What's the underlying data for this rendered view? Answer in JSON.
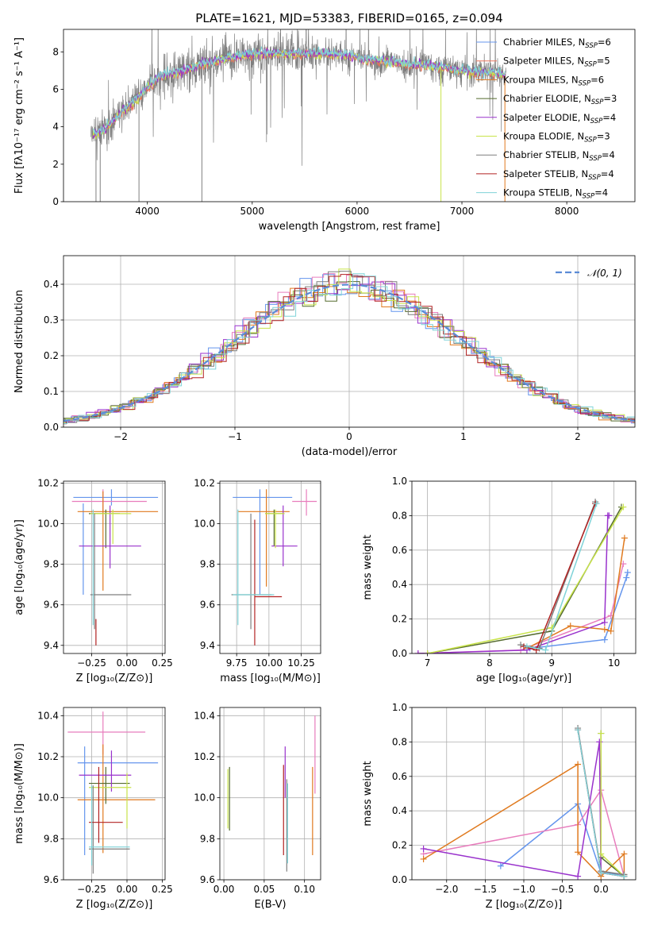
{
  "colors": {
    "chabrier_miles": "#6495ed",
    "salpeter_miles": "#e8735a",
    "kroupa_miles": "#e07a1f",
    "chabrier_elodie": "#556b2f",
    "salpeter_elodie": "#9932cc",
    "kroupa_elodie": "#c8e34a",
    "chabrier_stelib": "#7f7f7f",
    "salpeter_stelib": "#b22222",
    "kroupa_stelib": "#7fd3d8",
    "pink": "#e87dbd",
    "normal": "#5b8bd6"
  },
  "chart_data": [
    {
      "id": "spectrum",
      "type": "line",
      "title": "PLATE=1621, MJD=53383, FIBERID=0165, z=0.094",
      "xlabel": "wavelength [Angstrom, rest frame]",
      "ylabel": "Flux [fλ10⁻¹⁷ erg cm⁻² s⁻¹ A⁻¹]",
      "xlim": [
        3200,
        8650
      ],
      "ylim": [
        0,
        9.2
      ],
      "xticks": [
        4000,
        5000,
        6000,
        7000,
        8000
      ],
      "yticks": [
        0,
        2,
        4,
        6,
        8
      ],
      "xtick_labels": [
        "4000",
        "5000",
        "6000",
        "7000",
        "8000"
      ],
      "ytick_labels": [
        "0",
        "2",
        "4",
        "6",
        "8"
      ],
      "grid": false,
      "legend_position": "top-right",
      "legend": [
        {
          "name": "Chabrier MILES, N",
          "sub": "SSP",
          "tail": "=6",
          "color": "chabrier_miles"
        },
        {
          "name": "Salpeter MILES, N",
          "sub": "SSP",
          "tail": "=5",
          "color": "salpeter_miles"
        },
        {
          "name": "Kroupa MILES, N",
          "sub": "SSP",
          "tail": "=6",
          "color": "kroupa_miles"
        },
        {
          "name": "Chabrier ELODIE, N",
          "sub": "SSP",
          "tail": "=3",
          "color": "chabrier_elodie"
        },
        {
          "name": "Salpeter ELODIE, N",
          "sub": "SSP",
          "tail": "=4",
          "color": "salpeter_elodie"
        },
        {
          "name": "Kroupa ELODIE, N",
          "sub": "SSP",
          "tail": "=3",
          "color": "kroupa_elodie"
        },
        {
          "name": "Chabrier STELIB, N",
          "sub": "SSP",
          "tail": "=4",
          "color": "chabrier_stelib"
        },
        {
          "name": "Salpeter STELIB, N",
          "sub": "SSP",
          "tail": "=4",
          "color": "salpeter_stelib"
        },
        {
          "name": "Kroupa STELIB, N",
          "sub": "SSP",
          "tail": "=4",
          "color": "kroupa_stelib"
        }
      ],
      "continuum": {
        "x": [
          3500,
          3600,
          3700,
          3800,
          3900,
          4000,
          4100,
          4200,
          4300,
          4500,
          4700,
          4900,
          5100,
          5300,
          5500,
          5700,
          5900,
          6100,
          6300,
          6500,
          6700,
          6900,
          7100,
          7300,
          7420
        ],
        "y": [
          3.6,
          3.9,
          4.5,
          5.0,
          5.5,
          6.1,
          6.6,
          6.8,
          6.9,
          7.3,
          7.6,
          7.8,
          7.95,
          7.9,
          7.9,
          7.9,
          7.8,
          7.6,
          7.5,
          7.3,
          7.3,
          7.1,
          6.9,
          6.9,
          6.8
        ]
      },
      "wave_range": [
        3460,
        7420
      ]
    },
    {
      "id": "residuals",
      "type": "bar",
      "xlabel": "(data-model)/error",
      "ylabel": "Normed distribution",
      "xlim": [
        -2.5,
        2.5
      ],
      "ylim": [
        0,
        0.48
      ],
      "xticks": [
        -2,
        -1,
        0,
        1,
        2
      ],
      "yticks": [
        0,
        0.1,
        0.2,
        0.3,
        0.4
      ],
      "xtick_labels": [
        "−2",
        "−1",
        "0",
        "1",
        "2"
      ],
      "ytick_labels": [
        "0.0",
        "0.1",
        "0.2",
        "0.3",
        "0.4"
      ],
      "grid": true,
      "bin_width": 0.1,
      "legend_position": "top-right",
      "legend": [
        {
          "name": "𝒩(0, 1)",
          "color": "normal"
        }
      ]
    },
    {
      "id": "age-vs-z",
      "type": "scatter",
      "xlabel": "Z [log₁₀(Z/Z⊙)]",
      "ylabel": "age  [log₁₀(age/yr)]",
      "xlim": [
        -0.45,
        0.27
      ],
      "ylim": [
        9.36,
        10.21
      ],
      "xticks": [
        -0.25,
        0.0,
        0.25
      ],
      "xtick_labels": [
        "−0.25",
        "0.00",
        "0.25"
      ],
      "yticks": [
        9.4,
        9.6,
        9.8,
        10.0,
        10.2
      ],
      "ytick_labels": [
        "9.4",
        "9.6",
        "9.8",
        "10.0",
        "10.2"
      ],
      "grid": true,
      "points": [
        {
          "x": -0.11,
          "xlo": -0.38,
          "xhi": 0.22,
          "y": 10.13,
          "ylo": 10.09,
          "yhi": 10.17,
          "color": "chabrier_miles"
        },
        {
          "x": -0.31,
          "xlo": -0.31,
          "xhi": -0.31,
          "y": 9.9,
          "ylo": 9.65,
          "yhi": 10.1,
          "color": "chabrier_miles"
        },
        {
          "x": -0.17,
          "xlo": -0.39,
          "xhi": 0.14,
          "y": 10.11,
          "ylo": 10.06,
          "yhi": 10.17,
          "color": "pink"
        },
        {
          "x": -0.17,
          "xlo": -0.35,
          "xhi": 0.22,
          "y": 10.06,
          "ylo": 9.67,
          "yhi": 10.16,
          "color": "kroupa_miles"
        },
        {
          "x": -0.15,
          "xlo": -0.27,
          "xhi": -0.05,
          "y": 10.05,
          "ylo": 9.88,
          "yhi": 10.07,
          "color": "chabrier_elodie"
        },
        {
          "x": -0.12,
          "xlo": -0.34,
          "xhi": 0.1,
          "y": 9.89,
          "ylo": 9.78,
          "yhi": 10.09,
          "color": "salpeter_elodie"
        },
        {
          "x": -0.1,
          "xlo": -0.26,
          "xhi": 0.03,
          "y": 10.05,
          "ylo": 9.9,
          "yhi": 10.07,
          "color": "kroupa_elodie"
        },
        {
          "x": -0.23,
          "xlo": -0.26,
          "xhi": 0.03,
          "y": 9.65,
          "ylo": 9.48,
          "yhi": 10.05,
          "color": "chabrier_stelib"
        },
        {
          "x": -0.22,
          "xlo": -0.22,
          "xhi": -0.22,
          "y": 9.5,
          "ylo": 9.4,
          "yhi": 9.53,
          "color": "salpeter_stelib"
        },
        {
          "x": -0.24,
          "xlo": -0.24,
          "xhi": -0.24,
          "y": 9.65,
          "ylo": 9.5,
          "yhi": 10.07,
          "color": "kroupa_stelib"
        }
      ]
    },
    {
      "id": "age-vs-mass",
      "type": "scatter",
      "xlabel": "mass [log₁₀(M/M⊙)]",
      "ylabel": "",
      "xlim": [
        9.62,
        10.4
      ],
      "ylim": [
        9.36,
        10.21
      ],
      "xticks": [
        9.75,
        10.0,
        10.25
      ],
      "xtick_labels": [
        "9.75",
        "10.00",
        "10.25"
      ],
      "yticks": [
        9.4,
        9.6,
        9.8,
        10.0,
        10.2
      ],
      "ytick_labels": [
        "9.4",
        "9.6",
        "9.8",
        "10.0",
        "10.2"
      ],
      "grid": true,
      "points": [
        {
          "x": 9.93,
          "xlo": 9.72,
          "xhi": 10.18,
          "y": 10.13,
          "ylo": 9.65,
          "yhi": 10.17,
          "color": "chabrier_miles"
        },
        {
          "x": 10.29,
          "xlo": 10.18,
          "xhi": 10.37,
          "y": 10.11,
          "ylo": 10.04,
          "yhi": 10.17,
          "color": "pink"
        },
        {
          "x": 9.98,
          "xlo": 9.76,
          "xhi": 10.16,
          "y": 10.06,
          "ylo": 9.69,
          "yhi": 10.17,
          "color": "kroupa_miles"
        },
        {
          "x": 10.04,
          "xlo": 9.97,
          "xhi": 10.12,
          "y": 10.05,
          "ylo": 9.89,
          "yhi": 10.07,
          "color": "chabrier_elodie"
        },
        {
          "x": 10.11,
          "xlo": 10.02,
          "xhi": 10.22,
          "y": 9.89,
          "ylo": 9.79,
          "yhi": 10.09,
          "color": "salpeter_elodie"
        },
        {
          "x": 10.05,
          "xlo": 9.97,
          "xhi": 10.12,
          "y": 10.05,
          "ylo": 9.88,
          "yhi": 10.07,
          "color": "kroupa_elodie"
        },
        {
          "x": 9.86,
          "xlo": 9.71,
          "xhi": 10.02,
          "y": 9.65,
          "ylo": 9.48,
          "yhi": 10.05,
          "color": "chabrier_stelib"
        },
        {
          "x": 9.89,
          "xlo": 9.89,
          "xhi": 10.1,
          "y": 9.64,
          "ylo": 9.4,
          "yhi": 10.02,
          "color": "salpeter_stelib"
        },
        {
          "x": 9.76,
          "xlo": 9.72,
          "xhi": 10.04,
          "y": 9.65,
          "ylo": 9.5,
          "yhi": 10.07,
          "color": "kroupa_stelib"
        }
      ]
    },
    {
      "id": "mass-weight-vs-age",
      "type": "line",
      "xlabel": "age  [log₁₀(age/yr)]",
      "ylabel": "mass weight",
      "xlim": [
        6.75,
        10.35
      ],
      "ylim": [
        0,
        1.0
      ],
      "xticks": [
        7,
        8,
        9,
        10
      ],
      "xtick_labels": [
        "7",
        "8",
        "9",
        "10"
      ],
      "yticks": [
        0,
        0.2,
        0.4,
        0.6,
        0.8,
        1.0
      ],
      "ytick_labels": [
        "0.0",
        "0.2",
        "0.4",
        "0.6",
        "0.8",
        "1.0"
      ],
      "grid": true,
      "series": [
        {
          "color": "chabrier_miles",
          "x": [
            8.65,
            9.85,
            10.2,
            10.22
          ],
          "y": [
            0.03,
            0.08,
            0.44,
            0.47
          ]
        },
        {
          "color": "pink",
          "x": [
            6.85,
            8.5,
            9.95,
            10.15
          ],
          "y": [
            0.0,
            0.02,
            0.22,
            0.52
          ]
        },
        {
          "color": "kroupa_miles",
          "x": [
            8.6,
            9.3,
            9.85,
            9.95,
            10.17
          ],
          "y": [
            0.03,
            0.16,
            0.14,
            0.13,
            0.67
          ]
        },
        {
          "color": "chabrier_elodie",
          "x": [
            7.0,
            9.0,
            10.12
          ],
          "y": [
            0.0,
            0.13,
            0.85
          ]
        },
        {
          "color": "salpeter_elodie",
          "x": [
            6.85,
            8.6,
            9.85,
            9.9,
            9.92
          ],
          "y": [
            0.0,
            0.02,
            0.18,
            0.8,
            0.8
          ]
        },
        {
          "color": "kroupa_elodie",
          "x": [
            7.0,
            9.0,
            10.15
          ],
          "y": [
            0.0,
            0.15,
            0.85
          ]
        },
        {
          "color": "chabrier_stelib",
          "x": [
            8.5,
            8.8,
            9.7
          ],
          "y": [
            0.05,
            0.03,
            0.88
          ]
        },
        {
          "color": "salpeter_stelib",
          "x": [
            8.55,
            8.75,
            9.7
          ],
          "y": [
            0.04,
            0.02,
            0.87
          ]
        },
        {
          "color": "kroupa_stelib",
          "x": [
            8.6,
            8.9,
            9.72
          ],
          "y": [
            0.04,
            0.02,
            0.87
          ]
        }
      ]
    },
    {
      "id": "mass-vs-z",
      "type": "scatter",
      "xlabel": "Z [log₁₀(Z/Z⊙)]",
      "ylabel": "mass [log₁₀(M/M⊙)]",
      "xlim": [
        -0.45,
        0.27
      ],
      "ylim": [
        9.6,
        10.44
      ],
      "xticks": [
        -0.25,
        0.0,
        0.25
      ],
      "xtick_labels": [
        "−0.25",
        "0.00",
        "0.25"
      ],
      "yticks": [
        9.6,
        9.8,
        10.0,
        10.2,
        10.4
      ],
      "ytick_labels": [
        "9.6",
        "9.8",
        "10.0",
        "10.2",
        "10.4"
      ],
      "grid": true,
      "points": [
        {
          "x": -0.3,
          "xlo": -0.35,
          "xhi": 0.22,
          "y": 10.17,
          "ylo": 9.72,
          "yhi": 10.25,
          "color": "chabrier_miles"
        },
        {
          "x": -0.17,
          "xlo": -0.42,
          "xhi": 0.13,
          "y": 10.32,
          "ylo": 10.21,
          "yhi": 10.42,
          "color": "pink"
        },
        {
          "x": -0.17,
          "xlo": -0.35,
          "xhi": 0.2,
          "y": 9.99,
          "ylo": 9.73,
          "yhi": 10.26,
          "color": "kroupa_miles"
        },
        {
          "x": -0.15,
          "xlo": -0.27,
          "xhi": 0.02,
          "y": 10.07,
          "ylo": 9.97,
          "yhi": 10.15,
          "color": "chabrier_elodie"
        },
        {
          "x": -0.11,
          "xlo": -0.34,
          "xhi": 0.03,
          "y": 10.11,
          "ylo": 10.03,
          "yhi": 10.23,
          "color": "salpeter_elodie"
        },
        {
          "x": 0.0,
          "xlo": -0.27,
          "xhi": 0.03,
          "y": 10.05,
          "ylo": 9.85,
          "yhi": 10.12,
          "color": "kroupa_elodie"
        },
        {
          "x": -0.24,
          "xlo": -0.27,
          "xhi": 0.02,
          "y": 9.75,
          "ylo": 9.63,
          "yhi": 10.06,
          "color": "chabrier_stelib"
        },
        {
          "x": -0.2,
          "xlo": -0.27,
          "xhi": -0.03,
          "y": 9.88,
          "ylo": 9.78,
          "yhi": 10.15,
          "color": "salpeter_stelib"
        },
        {
          "x": -0.25,
          "xlo": -0.27,
          "xhi": 0.02,
          "y": 9.76,
          "ylo": 9.67,
          "yhi": 10.06,
          "color": "kroupa_stelib"
        }
      ]
    },
    {
      "id": "mass-vs-ebv",
      "type": "scatter",
      "xlabel": "E(B-V)",
      "ylabel": "",
      "xlim": [
        -0.005,
        0.12
      ],
      "ylim": [
        9.6,
        10.44
      ],
      "xticks": [
        0.0,
        0.05,
        0.1
      ],
      "xtick_labels": [
        "0.00",
        "0.05",
        "0.10"
      ],
      "yticks": [
        9.6,
        9.8,
        10.0,
        10.2,
        10.4
      ],
      "ytick_labels": [
        "9.6",
        "9.8",
        "10.0",
        "10.2",
        "10.4"
      ],
      "grid": true,
      "points": [
        {
          "x": 0.005,
          "xlo": 0.005,
          "xhi": 0.005,
          "y": 10.0,
          "ylo": 9.85,
          "yhi": 10.14,
          "color": "kroupa_elodie"
        },
        {
          "x": 0.007,
          "xlo": 0.007,
          "xhi": 0.007,
          "y": 10.05,
          "ylo": 9.84,
          "yhi": 10.15,
          "color": "chabrier_elodie"
        },
        {
          "x": 0.074,
          "xlo": 0.074,
          "xhi": 0.074,
          "y": 10.05,
          "ylo": 9.72,
          "yhi": 10.16,
          "color": "salpeter_stelib"
        },
        {
          "x": 0.076,
          "xlo": 0.076,
          "xhi": 0.076,
          "y": 10.1,
          "ylo": 10.0,
          "yhi": 10.25,
          "color": "salpeter_elodie"
        },
        {
          "x": 0.078,
          "xlo": 0.078,
          "xhi": 0.078,
          "y": 9.85,
          "ylo": 9.64,
          "yhi": 10.09,
          "color": "chabrier_stelib"
        },
        {
          "x": 0.079,
          "xlo": 0.079,
          "xhi": 0.079,
          "y": 9.85,
          "ylo": 9.68,
          "yhi": 10.07,
          "color": "kroupa_stelib"
        },
        {
          "x": 0.11,
          "xlo": 0.11,
          "xhi": 0.11,
          "y": 9.95,
          "ylo": 9.72,
          "yhi": 10.15,
          "color": "kroupa_miles"
        },
        {
          "x": 0.113,
          "xlo": 0.113,
          "xhi": 0.113,
          "y": 10.2,
          "ylo": 10.02,
          "yhi": 10.4,
          "color": "pink"
        }
      ]
    },
    {
      "id": "mass-weight-vs-z",
      "type": "line",
      "xlabel": "Z [log₁₀(Z/Z⊙)]",
      "ylabel": "mass weight",
      "xlim": [
        -2.45,
        0.45
      ],
      "ylim": [
        0,
        1.0
      ],
      "xticks": [
        -2.0,
        -1.5,
        -1.0,
        -0.5,
        0.0
      ],
      "xtick_labels": [
        "−2.0",
        "−1.5",
        "−1.0",
        "−0.5",
        "0.0"
      ],
      "yticks": [
        0,
        0.2,
        0.4,
        0.6,
        0.8,
        1.0
      ],
      "ytick_labels": [
        "0.0",
        "0.2",
        "0.4",
        "0.6",
        "0.8",
        "1.0"
      ],
      "grid": true,
      "series": [
        {
          "color": "chabrier_miles",
          "x": [
            -1.3,
            -0.3,
            0.0,
            0.3
          ],
          "y": [
            0.08,
            0.44,
            0.04,
            0.03
          ]
        },
        {
          "color": "pink",
          "x": [
            -2.3,
            -0.3,
            0.0,
            0.3
          ],
          "y": [
            0.15,
            0.32,
            0.52,
            0.02
          ]
        },
        {
          "color": "kroupa_miles",
          "x": [
            -2.3,
            -0.3,
            -0.3,
            0.0,
            0.3,
            0.3
          ],
          "y": [
            0.12,
            0.67,
            0.16,
            0.02,
            0.15,
            0.03
          ]
        },
        {
          "color": "chabrier_elodie",
          "x": [
            0.0,
            0.0,
            0.3
          ],
          "y": [
            0.85,
            0.13,
            0.02
          ]
        },
        {
          "color": "salpeter_elodie",
          "x": [
            -2.3,
            -0.3,
            -0.02,
            0.0,
            0.3
          ],
          "y": [
            0.18,
            0.02,
            0.8,
            0.04,
            0.02
          ]
        },
        {
          "color": "kroupa_elodie",
          "x": [
            0.0,
            0.0,
            0.3
          ],
          "y": [
            0.85,
            0.15,
            0.02
          ]
        },
        {
          "color": "chabrier_stelib",
          "x": [
            -0.3,
            0.0,
            0.3
          ],
          "y": [
            0.88,
            0.05,
            0.03
          ]
        },
        {
          "color": "salpeter_stelib",
          "x": [
            -0.3,
            0.0,
            0.3
          ],
          "y": [
            0.87,
            0.04,
            0.02
          ]
        },
        {
          "color": "kroupa_stelib",
          "x": [
            -0.3,
            0.0,
            0.3
          ],
          "y": [
            0.87,
            0.04,
            0.02
          ]
        }
      ]
    }
  ]
}
